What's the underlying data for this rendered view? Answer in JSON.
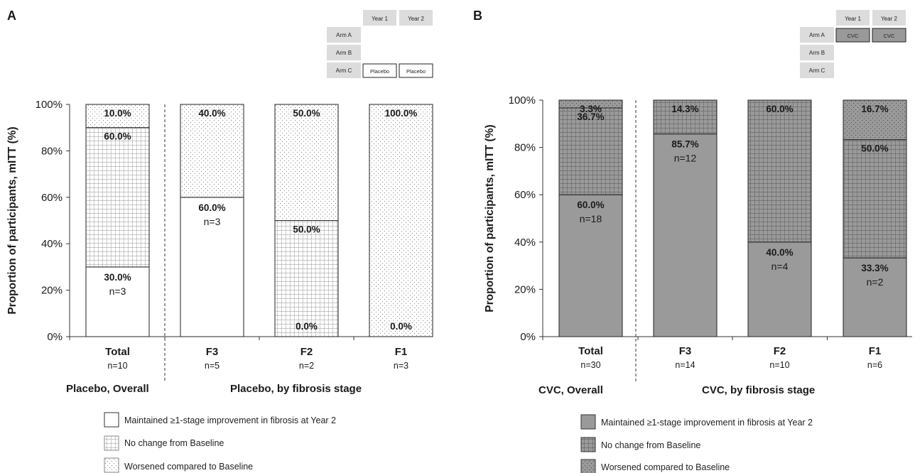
{
  "colors": {
    "arm_a_fill": "#999999",
    "treatment_bar": "#9a9a9a",
    "placebo_bar": "#ffffff",
    "grid_label_bg": "#dcdcdc",
    "text": "#1a1a1a"
  },
  "panels": [
    {
      "letter": "A",
      "design_table": {
        "columns": [
          "Year 1",
          "Year 2"
        ],
        "rows": [
          {
            "label": "Arm A",
            "cells": [
              "",
              ""
            ]
          },
          {
            "label": "Arm B",
            "cells": [
              "",
              ""
            ]
          },
          {
            "label": "Arm C",
            "cells": [
              "Placebo",
              "Placebo"
            ]
          }
        ]
      },
      "group_labels": [
        "Placebo, Overall",
        "Placebo, by fibrosis stage"
      ],
      "legend": [
        {
          "pattern": "maintained",
          "label": "Maintained ≥1-stage improvement in fibrosis at Year 2"
        },
        {
          "pattern": "nochange",
          "label": "No change from Baseline"
        },
        {
          "pattern": "worsened",
          "label": "Worsened compared to Baseline"
        }
      ]
    },
    {
      "letter": "B",
      "design_table": {
        "columns": [
          "Year 1",
          "Year 2"
        ],
        "rows": [
          {
            "label": "Arm A",
            "cells": [
              "CVC",
              "CVC"
            ]
          },
          {
            "label": "Arm B",
            "cells": [
              "",
              ""
            ]
          },
          {
            "label": "Arm C",
            "cells": [
              "",
              ""
            ]
          }
        ]
      },
      "group_labels": [
        "CVC, Overall",
        "CVC, by fibrosis stage"
      ],
      "legend": [
        {
          "pattern": "maintained",
          "label": "Maintained ≥1-stage improvement in fibrosis at Year 2"
        },
        {
          "pattern": "nochange",
          "label": "No change from Baseline"
        },
        {
          "pattern": "worsened",
          "label": "Worsened compared to Baseline"
        }
      ]
    }
  ],
  "chart_data": [
    {
      "type": "bar",
      "stacked": true,
      "ylabel": "Proportion of participants, mITT (%)",
      "ylim": [
        0,
        100
      ],
      "yticks": [
        "0%",
        "20%",
        "40%",
        "60%",
        "80%",
        "100%"
      ],
      "categories": [
        "Total",
        "F3",
        "F2",
        "F1"
      ],
      "category_n": [
        "n=10",
        "n=5",
        "n=2",
        "n=3"
      ],
      "series": [
        {
          "name": "Maintained ≥1-stage improvement in fibrosis at Year 2",
          "values": [
            30.0,
            60.0,
            0.0,
            0.0
          ],
          "labels": [
            "30.0%",
            "60.0%",
            "",
            ""
          ],
          "n": [
            "n=3",
            "n=3",
            "",
            ""
          ]
        },
        {
          "name": "No change from Baseline",
          "values": [
            60.0,
            0.0,
            50.0,
            0.0
          ],
          "labels": [
            "60.0%",
            "",
            "50.0%",
            "0.0%"
          ],
          "n": [
            "",
            "",
            "",
            ""
          ]
        },
        {
          "name": "Worsened compared to Baseline",
          "values": [
            10.0,
            40.0,
            50.0,
            100.0
          ],
          "labels": [
            "10.0%",
            "40.0%",
            "50.0%",
            "100.0%"
          ],
          "n": [
            "",
            "",
            "",
            ""
          ]
        }
      ],
      "extra_labels": [
        {
          "category": "F2",
          "label": "0.0%"
        }
      ]
    },
    {
      "type": "bar",
      "stacked": true,
      "ylabel": "Proportion of participants, mITT (%)",
      "ylim": [
        0,
        100
      ],
      "yticks": [
        "0%",
        "20%",
        "40%",
        "60%",
        "80%",
        "100%"
      ],
      "categories": [
        "Total",
        "F3",
        "F2",
        "F1"
      ],
      "category_n": [
        "n=30",
        "n=14",
        "n=10",
        "n=6"
      ],
      "series": [
        {
          "name": "Maintained ≥1-stage improvement in fibrosis at Year 2",
          "values": [
            60.0,
            85.7,
            40.0,
            33.3
          ],
          "labels": [
            "60.0%",
            "85.7%",
            "40.0%",
            "33.3%"
          ],
          "n": [
            "n=18",
            "n=12",
            "n=4",
            "n=2"
          ]
        },
        {
          "name": "No change from Baseline",
          "values": [
            36.7,
            14.3,
            60.0,
            50.0
          ],
          "labels": [
            "36.7%",
            "14.3%",
            "60.0%",
            "50.0%"
          ],
          "n": [
            "",
            "",
            "",
            ""
          ]
        },
        {
          "name": "Worsened compared to Baseline",
          "values": [
            3.3,
            0.0,
            0.0,
            16.7
          ],
          "labels": [
            "3.3%",
            "",
            "",
            "16.7%"
          ],
          "n": [
            "",
            "",
            "",
            ""
          ]
        }
      ],
      "extra_labels": []
    }
  ]
}
